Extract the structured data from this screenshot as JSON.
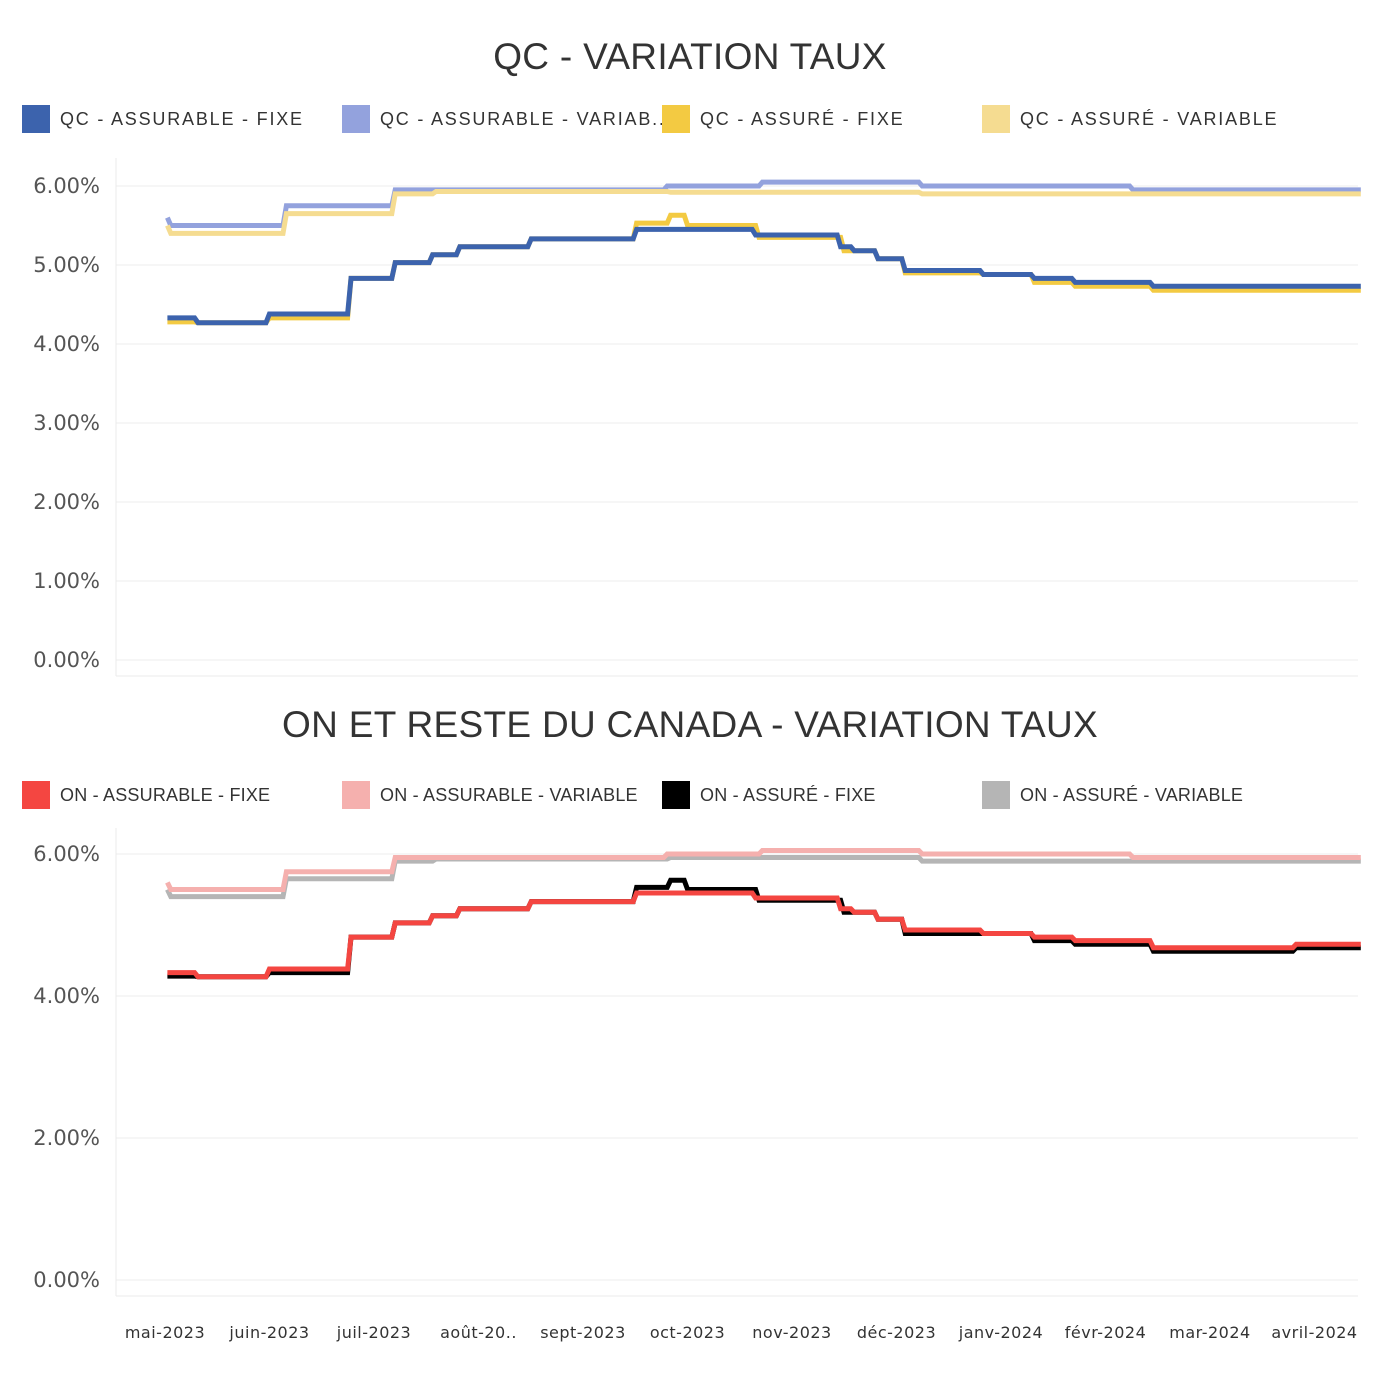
{
  "charts": {
    "qc": {
      "title": "QC - VARIATION TAUX",
      "legend": [
        {
          "label": "QC - ASSURABLE - FIXE",
          "color": "#3c63ad"
        },
        {
          "label": "QC - ASSURABLE - VARIAB..",
          "color": "#93a2dd"
        },
        {
          "label": "QC - ASSURÉ - FIXE",
          "color": "#f3ca42"
        },
        {
          "label": "QC - ASSURÉ - VARIABLE",
          "color": "#f5dc91"
        }
      ]
    },
    "on": {
      "title": "ON ET RESTE DU CANADA - VARIATION TAUX",
      "legend": [
        {
          "label": "ON - ASSURABLE - FIXE",
          "color": "#f44641"
        },
        {
          "label": "ON - ASSURABLE - VARIABLE",
          "color": "#f5b0ae"
        },
        {
          "label": "ON - ASSURÉ - FIXE",
          "color": "#000000"
        },
        {
          "label": "ON - ASSURÉ - VARIABLE",
          "color": "#b5b5b5"
        }
      ]
    }
  },
  "chart_data": [
    {
      "type": "line",
      "title": "QC - VARIATION TAUX",
      "xlabel": "",
      "ylabel": "",
      "x_tick_labels": [
        "mai-2023",
        "juin-2023",
        "juil-2023",
        "août-20..",
        "sept-2023",
        "oct-2023",
        "nov-2023",
        "déc-2023",
        "janv-2024",
        "févr-2024",
        "mar-2024",
        "avril-2024"
      ],
      "y_ticks": [
        0,
        1,
        2,
        3,
        4,
        5,
        6
      ],
      "y_tick_labels": [
        "0.00%",
        "1.00%",
        "2.00%",
        "3.00%",
        "4.00%",
        "5.00%",
        "6.00%"
      ],
      "ylim": [
        0,
        6.2
      ],
      "xlim": [
        "2023-05-01",
        "2024-04-30"
      ],
      "grid": true,
      "legend_position": "top",
      "series": [
        {
          "name": "QC - ASSURABLE - VARIAB..",
          "color": "#93a2dd",
          "points": [
            [
              "2023-05-07",
              5.6
            ],
            [
              "2023-05-08",
              5.5
            ],
            [
              "2023-06-10",
              5.5
            ],
            [
              "2023-06-11",
              5.75
            ],
            [
              "2023-07-12",
              5.75
            ],
            [
              "2023-07-13",
              5.95
            ],
            [
              "2023-09-30",
              5.95
            ],
            [
              "2023-10-01",
              6.0
            ],
            [
              "2023-10-28",
              6.0
            ],
            [
              "2023-10-29",
              6.05
            ],
            [
              "2023-12-14",
              6.05
            ],
            [
              "2023-12-15",
              6.0
            ],
            [
              "2024-02-14",
              6.0
            ],
            [
              "2024-02-15",
              5.95
            ],
            [
              "2024-04-22",
              5.95
            ]
          ]
        },
        {
          "name": "QC - ASSURÉ - VARIABLE",
          "color": "#f5dc91",
          "points": [
            [
              "2023-05-07",
              5.5
            ],
            [
              "2023-05-08",
              5.4
            ],
            [
              "2023-06-10",
              5.4
            ],
            [
              "2023-06-11",
              5.65
            ],
            [
              "2023-07-12",
              5.65
            ],
            [
              "2023-07-13",
              5.9
            ],
            [
              "2023-07-24",
              5.9
            ],
            [
              "2023-07-25",
              5.93
            ],
            [
              "2023-10-01",
              5.93
            ],
            [
              "2023-10-02",
              5.92
            ],
            [
              "2023-12-14",
              5.92
            ],
            [
              "2023-12-15",
              5.9
            ],
            [
              "2024-04-22",
              5.9
            ]
          ]
        },
        {
          "name": "QC - ASSURÉ - FIXE",
          "color": "#f3ca42",
          "points": [
            [
              "2023-05-07",
              4.28
            ],
            [
              "2023-05-15",
              4.28
            ],
            [
              "2023-05-16",
              4.27
            ],
            [
              "2023-06-05",
              4.27
            ],
            [
              "2023-06-06",
              4.33
            ],
            [
              "2023-06-29",
              4.33
            ],
            [
              "2023-06-30",
              4.83
            ],
            [
              "2023-07-12",
              4.83
            ],
            [
              "2023-07-13",
              5.03
            ],
            [
              "2023-07-23",
              5.03
            ],
            [
              "2023-07-24",
              5.13
            ],
            [
              "2023-07-31",
              5.13
            ],
            [
              "2023-08-01",
              5.23
            ],
            [
              "2023-08-21",
              5.23
            ],
            [
              "2023-08-22",
              5.33
            ],
            [
              "2023-09-21",
              5.33
            ],
            [
              "2023-09-22",
              5.53
            ],
            [
              "2023-10-01",
              5.53
            ],
            [
              "2023-10-02",
              5.63
            ],
            [
              "2023-10-06",
              5.63
            ],
            [
              "2023-10-07",
              5.5
            ],
            [
              "2023-10-27",
              5.5
            ],
            [
              "2023-10-28",
              5.35
            ],
            [
              "2023-11-21",
              5.35
            ],
            [
              "2023-11-22",
              5.18
            ],
            [
              "2023-12-01",
              5.18
            ],
            [
              "2023-12-02",
              5.08
            ],
            [
              "2023-12-09",
              5.08
            ],
            [
              "2023-12-10",
              4.9
            ],
            [
              "2024-01-01",
              4.9
            ],
            [
              "2024-01-02",
              4.88
            ],
            [
              "2024-01-16",
              4.88
            ],
            [
              "2024-01-17",
              4.78
            ],
            [
              "2024-01-28",
              4.78
            ],
            [
              "2024-01-29",
              4.73
            ],
            [
              "2024-02-20",
              4.73
            ],
            [
              "2024-02-21",
              4.68
            ],
            [
              "2024-04-22",
              4.68
            ]
          ]
        },
        {
          "name": "QC - ASSURABLE - FIXE",
          "color": "#3c63ad",
          "points": [
            [
              "2023-05-07",
              4.33
            ],
            [
              "2023-05-15",
              4.33
            ],
            [
              "2023-05-16",
              4.27
            ],
            [
              "2023-06-05",
              4.27
            ],
            [
              "2023-06-06",
              4.38
            ],
            [
              "2023-06-29",
              4.38
            ],
            [
              "2023-06-30",
              4.83
            ],
            [
              "2023-07-12",
              4.83
            ],
            [
              "2023-07-13",
              5.03
            ],
            [
              "2023-07-23",
              5.03
            ],
            [
              "2023-07-24",
              5.13
            ],
            [
              "2023-07-31",
              5.13
            ],
            [
              "2023-08-01",
              5.23
            ],
            [
              "2023-08-21",
              5.23
            ],
            [
              "2023-08-22",
              5.33
            ],
            [
              "2023-09-21",
              5.33
            ],
            [
              "2023-09-22",
              5.45
            ],
            [
              "2023-10-26",
              5.45
            ],
            [
              "2023-10-27",
              5.38
            ],
            [
              "2023-11-20",
              5.38
            ],
            [
              "2023-11-21",
              5.23
            ],
            [
              "2023-11-24",
              5.23
            ],
            [
              "2023-11-25",
              5.18
            ],
            [
              "2023-12-01",
              5.18
            ],
            [
              "2023-12-02",
              5.08
            ],
            [
              "2023-12-09",
              5.08
            ],
            [
              "2023-12-10",
              4.93
            ],
            [
              "2024-01-01",
              4.93
            ],
            [
              "2024-01-02",
              4.88
            ],
            [
              "2024-01-16",
              4.88
            ],
            [
              "2024-01-17",
              4.83
            ],
            [
              "2024-01-28",
              4.83
            ],
            [
              "2024-01-29",
              4.78
            ],
            [
              "2024-02-20",
              4.78
            ],
            [
              "2024-02-21",
              4.73
            ],
            [
              "2024-04-22",
              4.73
            ]
          ]
        }
      ]
    },
    {
      "type": "line",
      "title": "ON ET RESTE DU CANADA - VARIATION TAUX",
      "xlabel": "",
      "ylabel": "",
      "x_tick_labels": [
        "mai-2023",
        "juin-2023",
        "juil-2023",
        "août-20..",
        "sept-2023",
        "oct-2023",
        "nov-2023",
        "déc-2023",
        "janv-2024",
        "févr-2024",
        "mar-2024",
        "avril-2024"
      ],
      "y_ticks": [
        0,
        2,
        4,
        6
      ],
      "y_tick_labels": [
        "0.00%",
        "2.00%",
        "4.00%",
        "6.00%"
      ],
      "ylim": [
        0,
        6.2
      ],
      "xlim": [
        "2023-05-01",
        "2024-04-30"
      ],
      "grid": true,
      "legend_position": "top",
      "series": [
        {
          "name": "ON - ASSURÉ - VARIABLE",
          "color": "#b5b5b5",
          "points": [
            [
              "2023-05-07",
              5.5
            ],
            [
              "2023-05-08",
              5.4
            ],
            [
              "2023-06-10",
              5.4
            ],
            [
              "2023-06-11",
              5.65
            ],
            [
              "2023-07-12",
              5.65
            ],
            [
              "2023-07-13",
              5.9
            ],
            [
              "2023-07-24",
              5.9
            ],
            [
              "2023-07-25",
              5.93
            ],
            [
              "2023-10-01",
              5.93
            ],
            [
              "2023-10-02",
              5.95
            ],
            [
              "2023-12-14",
              5.95
            ],
            [
              "2023-12-15",
              5.9
            ],
            [
              "2024-04-22",
              5.9
            ]
          ]
        },
        {
          "name": "ON - ASSURABLE - VARIABLE",
          "color": "#f5b0ae",
          "points": [
            [
              "2023-05-07",
              5.6
            ],
            [
              "2023-05-08",
              5.5
            ],
            [
              "2023-06-10",
              5.5
            ],
            [
              "2023-06-11",
              5.75
            ],
            [
              "2023-07-12",
              5.75
            ],
            [
              "2023-07-13",
              5.95
            ],
            [
              "2023-09-30",
              5.95
            ],
            [
              "2023-10-01",
              6.0
            ],
            [
              "2023-10-28",
              6.0
            ],
            [
              "2023-10-29",
              6.05
            ],
            [
              "2023-12-14",
              6.05
            ],
            [
              "2023-12-15",
              6.0
            ],
            [
              "2024-02-14",
              6.0
            ],
            [
              "2024-02-15",
              5.95
            ],
            [
              "2024-04-22",
              5.95
            ]
          ]
        },
        {
          "name": "ON - ASSURÉ - FIXE",
          "color": "#000000",
          "points": [
            [
              "2023-05-07",
              4.28
            ],
            [
              "2023-05-15",
              4.28
            ],
            [
              "2023-05-16",
              4.27
            ],
            [
              "2023-06-05",
              4.27
            ],
            [
              "2023-06-06",
              4.33
            ],
            [
              "2023-06-29",
              4.33
            ],
            [
              "2023-06-30",
              4.83
            ],
            [
              "2023-07-12",
              4.83
            ],
            [
              "2023-07-13",
              5.03
            ],
            [
              "2023-07-23",
              5.03
            ],
            [
              "2023-07-24",
              5.13
            ],
            [
              "2023-07-31",
              5.13
            ],
            [
              "2023-08-01",
              5.23
            ],
            [
              "2023-08-21",
              5.23
            ],
            [
              "2023-08-22",
              5.33
            ],
            [
              "2023-09-21",
              5.33
            ],
            [
              "2023-09-22",
              5.53
            ],
            [
              "2023-10-01",
              5.53
            ],
            [
              "2023-10-02",
              5.63
            ],
            [
              "2023-10-06",
              5.63
            ],
            [
              "2023-10-07",
              5.5
            ],
            [
              "2023-10-27",
              5.5
            ],
            [
              "2023-10-28",
              5.35
            ],
            [
              "2023-11-21",
              5.35
            ],
            [
              "2023-11-22",
              5.18
            ],
            [
              "2023-12-01",
              5.18
            ],
            [
              "2023-12-02",
              5.08
            ],
            [
              "2023-12-09",
              5.08
            ],
            [
              "2023-12-10",
              4.88
            ],
            [
              "2024-01-16",
              4.88
            ],
            [
              "2024-01-17",
              4.78
            ],
            [
              "2024-01-28",
              4.78
            ],
            [
              "2024-01-29",
              4.73
            ],
            [
              "2024-02-20",
              4.73
            ],
            [
              "2024-02-21",
              4.63
            ],
            [
              "2024-04-02",
              4.63
            ],
            [
              "2024-04-03",
              4.68
            ],
            [
              "2024-04-22",
              4.68
            ]
          ]
        },
        {
          "name": "ON - ASSURABLE - FIXE",
          "color": "#f44641",
          "points": [
            [
              "2023-05-07",
              4.33
            ],
            [
              "2023-05-15",
              4.33
            ],
            [
              "2023-05-16",
              4.27
            ],
            [
              "2023-06-05",
              4.27
            ],
            [
              "2023-06-06",
              4.38
            ],
            [
              "2023-06-29",
              4.38
            ],
            [
              "2023-06-30",
              4.83
            ],
            [
              "2023-07-12",
              4.83
            ],
            [
              "2023-07-13",
              5.03
            ],
            [
              "2023-07-23",
              5.03
            ],
            [
              "2023-07-24",
              5.13
            ],
            [
              "2023-07-31",
              5.13
            ],
            [
              "2023-08-01",
              5.23
            ],
            [
              "2023-08-21",
              5.23
            ],
            [
              "2023-08-22",
              5.33
            ],
            [
              "2023-09-21",
              5.33
            ],
            [
              "2023-09-22",
              5.45
            ],
            [
              "2023-10-26",
              5.45
            ],
            [
              "2023-10-27",
              5.38
            ],
            [
              "2023-11-20",
              5.38
            ],
            [
              "2023-11-21",
              5.23
            ],
            [
              "2023-11-24",
              5.23
            ],
            [
              "2023-11-25",
              5.18
            ],
            [
              "2023-12-01",
              5.18
            ],
            [
              "2023-12-02",
              5.08
            ],
            [
              "2023-12-09",
              5.08
            ],
            [
              "2023-12-10",
              4.93
            ],
            [
              "2024-01-01",
              4.93
            ],
            [
              "2024-01-02",
              4.88
            ],
            [
              "2024-01-16",
              4.88
            ],
            [
              "2024-01-17",
              4.83
            ],
            [
              "2024-01-28",
              4.83
            ],
            [
              "2024-01-29",
              4.78
            ],
            [
              "2024-02-20",
              4.78
            ],
            [
              "2024-02-21",
              4.68
            ],
            [
              "2024-04-02",
              4.68
            ],
            [
              "2024-04-03",
              4.73
            ],
            [
              "2024-04-22",
              4.73
            ]
          ]
        }
      ]
    }
  ]
}
